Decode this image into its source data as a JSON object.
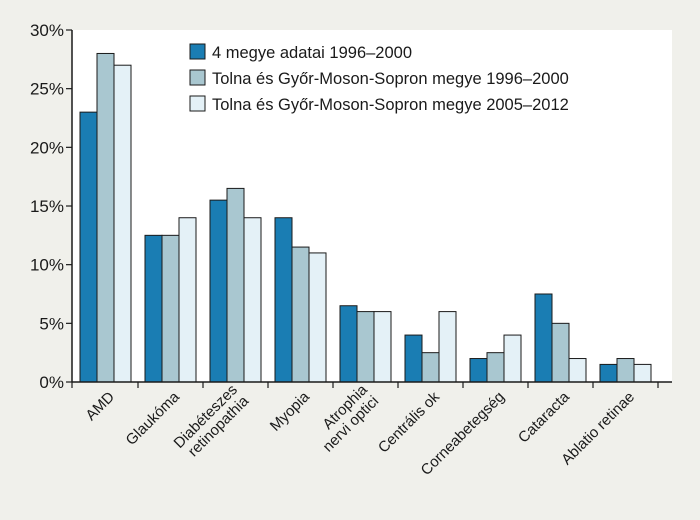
{
  "chart_data": {
    "type": "bar",
    "title": "",
    "xlabel": "",
    "ylabel": "",
    "ylim": [
      0,
      30
    ],
    "yticks": [
      0,
      5,
      10,
      15,
      20,
      25,
      30
    ],
    "ytick_labels": [
      "0%",
      "5%",
      "10%",
      "15%",
      "20%",
      "25%",
      "30%"
    ],
    "grid": false,
    "legend_position": "top-right",
    "categories": [
      [
        "AMD"
      ],
      [
        "Glaukóma"
      ],
      [
        "Diabéteszes",
        "retinopathia"
      ],
      [
        "Myopia"
      ],
      [
        "Atrophia",
        "nervi optici"
      ],
      [
        "Centrális ok"
      ],
      [
        "Corneabetegség"
      ],
      [
        "Cataracta"
      ],
      [
        "Ablatio retinae"
      ]
    ],
    "series": [
      {
        "name": "4 megye adatai 1996–2000",
        "color": "#1a7db3",
        "values": [
          23,
          12.5,
          15.5,
          14,
          6.5,
          4,
          2,
          7.5,
          1.5
        ]
      },
      {
        "name": "Tolna és Győr-Moson-Sopron megye 1996–2000",
        "color": "#a9c7d0",
        "values": [
          28,
          12.5,
          16.5,
          11.5,
          6,
          2.5,
          2.5,
          5,
          2
        ]
      },
      {
        "name": "Tolna és Győr-Moson-Sopron megye 2005–2012",
        "color": "#e4f1f7",
        "values": [
          27,
          14,
          14,
          11,
          6,
          6,
          4,
          2,
          1.5
        ]
      }
    ]
  }
}
